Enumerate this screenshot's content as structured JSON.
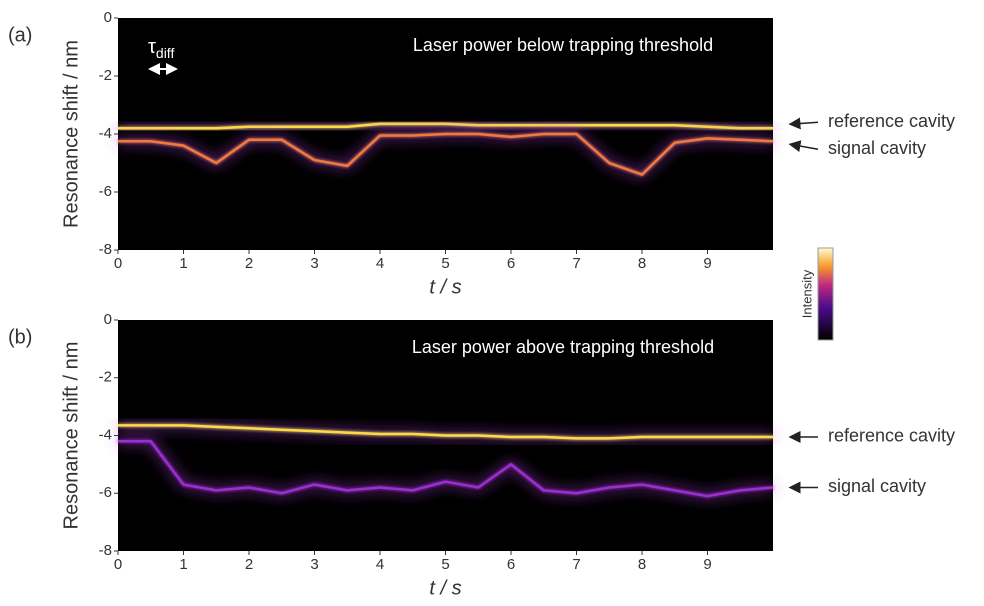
{
  "chart_data": [
    {
      "type": "line",
      "panel_label": "(a)",
      "annotation": "Laser power below trapping threshold",
      "tau_symbol": "τ",
      "tau_subscript": "diff",
      "x_label": "t / s",
      "y_label": "Resonance shift / nm",
      "xlim": [
        0,
        10
      ],
      "xticks": [
        0,
        1,
        2,
        3,
        4,
        5,
        6,
        7,
        8,
        9
      ],
      "ylim": [
        -8,
        0
      ],
      "yticks": [
        0,
        -2,
        -4,
        -6,
        -8
      ],
      "x": [
        0,
        0.5,
        1,
        1.5,
        2,
        2.5,
        3,
        3.5,
        4,
        4.5,
        5,
        5.5,
        6,
        6.5,
        7,
        7.5,
        8,
        8.5,
        9,
        9.5,
        10
      ],
      "series": [
        {
          "name": "reference cavity",
          "color": "#ffd84a",
          "values": [
            -3.8,
            -3.8,
            -3.8,
            -3.8,
            -3.75,
            -3.75,
            -3.75,
            -3.75,
            -3.65,
            -3.65,
            -3.65,
            -3.7,
            -3.7,
            -3.7,
            -3.7,
            -3.7,
            -3.7,
            -3.7,
            -3.75,
            -3.8,
            -3.8
          ]
        },
        {
          "name": "signal cavity",
          "color": "#f07a3c",
          "values": [
            -4.25,
            -4.25,
            -4.4,
            -5.0,
            -4.2,
            -4.2,
            -4.9,
            -5.1,
            -4.05,
            -4.05,
            -4.0,
            -4.0,
            -4.1,
            -4.0,
            -4.0,
            -5.0,
            -5.4,
            -4.3,
            -4.15,
            -4.2,
            -4.25
          ]
        }
      ],
      "colorbar_label": "Intensity"
    },
    {
      "type": "line",
      "panel_label": "(b)",
      "annotation": "Laser power above trapping threshold",
      "x_label": "t / s",
      "y_label": "Resonance shift / nm",
      "xlim": [
        0,
        10
      ],
      "xticks": [
        0,
        1,
        2,
        3,
        4,
        5,
        6,
        7,
        8,
        9
      ],
      "ylim": [
        -8,
        0
      ],
      "yticks": [
        0,
        -2,
        -4,
        -6,
        -8
      ],
      "x": [
        0,
        0.5,
        1,
        1.5,
        2,
        2.5,
        3,
        3.5,
        4,
        4.5,
        5,
        5.5,
        6,
        6.5,
        7,
        7.5,
        8,
        8.5,
        9,
        9.5,
        10
      ],
      "series": [
        {
          "name": "reference cavity",
          "color": "#ffd84a",
          "values": [
            -3.65,
            -3.65,
            -3.65,
            -3.7,
            -3.75,
            -3.8,
            -3.85,
            -3.9,
            -3.95,
            -3.95,
            -4.0,
            -4.0,
            -4.05,
            -4.05,
            -4.1,
            -4.1,
            -4.05,
            -4.05,
            -4.05,
            -4.05,
            -4.05
          ]
        },
        {
          "name": "signal cavity",
          "color": "#9a2fd0",
          "values": [
            -4.2,
            -4.2,
            -5.7,
            -5.9,
            -5.8,
            -6.0,
            -5.7,
            -5.9,
            -5.8,
            -5.9,
            -5.6,
            -5.8,
            -5.0,
            -5.9,
            -6.0,
            -5.8,
            -5.7,
            -5.9,
            -6.1,
            -5.9,
            -5.8
          ]
        }
      ]
    }
  ]
}
